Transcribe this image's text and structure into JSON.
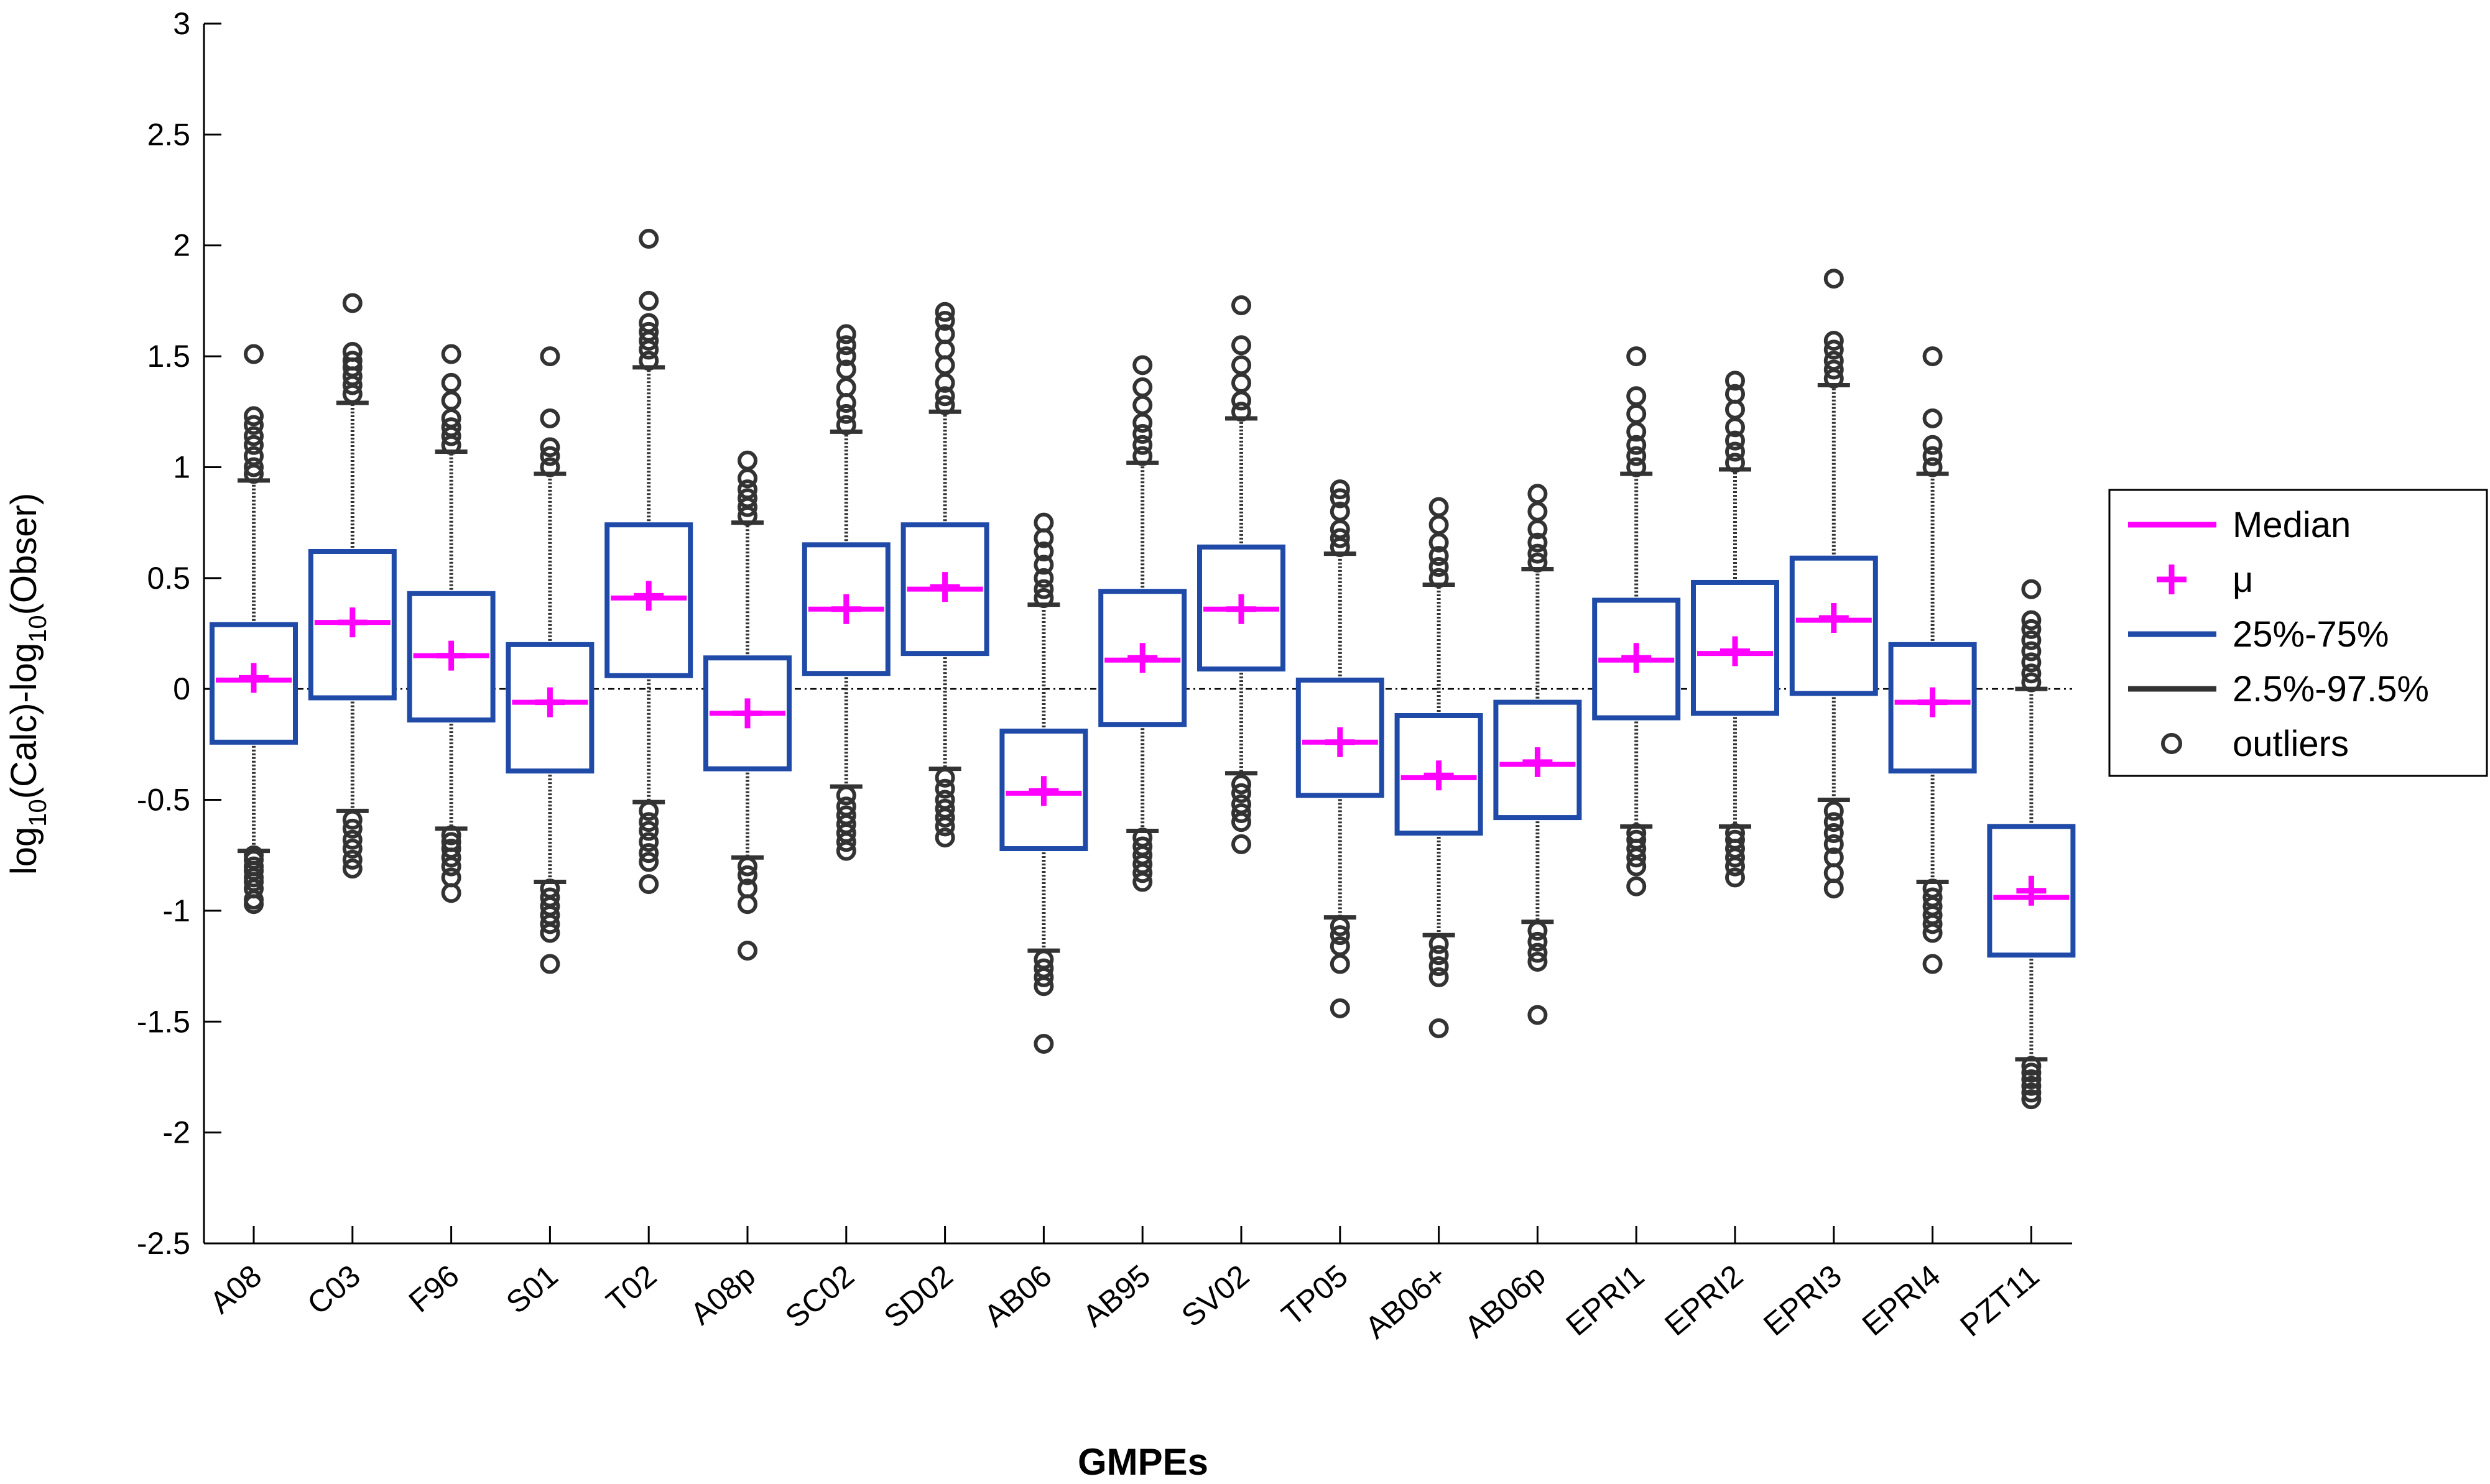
{
  "chart_data": {
    "type": "boxplot",
    "xlabel": "GMPEs",
    "ylabel_parts": [
      "log",
      "10",
      "(Calc)-log",
      "10",
      "(Obser)"
    ],
    "ylim": [
      -2.5,
      3
    ],
    "yticks": [
      -2.5,
      -2,
      -1.5,
      -1,
      -0.5,
      0,
      0.5,
      1,
      1.5,
      2,
      2.5,
      3
    ],
    "ytick_labels": [
      "-2.5",
      "-2",
      "-1.5",
      "-1",
      "-0.5",
      "0",
      "0.5",
      "1",
      "1.5",
      "2",
      "2.5",
      "3"
    ],
    "reference_line": 0,
    "categories": [
      "A08",
      "C03",
      "F96",
      "S01",
      "T02",
      "A08p",
      "SC02",
      "SD02",
      "AB06",
      "AB95",
      "SV02",
      "TP05",
      "AB06+",
      "AB06p",
      "EPRI1",
      "EPRI2",
      "EPRI3",
      "EPRI4",
      "PZT11"
    ],
    "boxes": [
      {
        "q1": -0.24,
        "q3": 0.29,
        "median": 0.04,
        "mean": 0.05,
        "lo": -0.73,
        "hi": 0.94,
        "outliers": [
          -0.97,
          -0.95,
          -0.9,
          -0.87,
          -0.85,
          -0.82,
          -0.8,
          -0.77,
          -0.75,
          0.97,
          1.0,
          1.05,
          1.1,
          1.14,
          1.19,
          1.23,
          1.51
        ]
      },
      {
        "q1": -0.04,
        "q3": 0.62,
        "median": 0.3,
        "mean": 0.3,
        "lo": -0.55,
        "hi": 1.29,
        "outliers": [
          -0.81,
          -0.77,
          -0.72,
          -0.68,
          -0.63,
          -0.59,
          1.33,
          1.37,
          1.41,
          1.45,
          1.48,
          1.52,
          1.74
        ]
      },
      {
        "q1": -0.14,
        "q3": 0.43,
        "median": 0.15,
        "mean": 0.15,
        "lo": -0.63,
        "hi": 1.07,
        "outliers": [
          -0.92,
          -0.85,
          -0.8,
          -0.76,
          -0.72,
          -0.69,
          -0.66,
          1.1,
          1.14,
          1.18,
          1.22,
          1.3,
          1.38,
          1.51
        ]
      },
      {
        "q1": -0.37,
        "q3": 0.2,
        "median": -0.06,
        "mean": -0.06,
        "lo": -0.87,
        "hi": 0.97,
        "outliers": [
          -1.24,
          -1.1,
          -1.06,
          -1.02,
          -0.98,
          -0.94,
          -0.9,
          1.0,
          1.05,
          1.09,
          1.22,
          1.5
        ]
      },
      {
        "q1": 0.06,
        "q3": 0.74,
        "median": 0.41,
        "mean": 0.42,
        "lo": -0.51,
        "hi": 1.45,
        "outliers": [
          -0.88,
          -0.78,
          -0.74,
          -0.69,
          -0.64,
          -0.6,
          -0.55,
          1.48,
          1.53,
          1.57,
          1.61,
          1.65,
          1.75,
          2.03
        ]
      },
      {
        "q1": -0.36,
        "q3": 0.14,
        "median": -0.11,
        "mean": -0.11,
        "lo": -0.76,
        "hi": 0.75,
        "outliers": [
          -1.18,
          -0.97,
          -0.9,
          -0.84,
          -0.8,
          0.78,
          0.82,
          0.86,
          0.9,
          0.95,
          1.03
        ]
      },
      {
        "q1": 0.07,
        "q3": 0.65,
        "median": 0.36,
        "mean": 0.36,
        "lo": -0.44,
        "hi": 1.16,
        "outliers": [
          -0.73,
          -0.69,
          -0.65,
          -0.61,
          -0.57,
          -0.53,
          -0.48,
          1.19,
          1.24,
          1.29,
          1.36,
          1.44,
          1.5,
          1.55,
          1.6
        ]
      },
      {
        "q1": 0.16,
        "q3": 0.74,
        "median": 0.45,
        "mean": 0.46,
        "lo": -0.36,
        "hi": 1.25,
        "outliers": [
          -0.67,
          -0.62,
          -0.58,
          -0.54,
          -0.5,
          -0.45,
          -0.4,
          1.28,
          1.32,
          1.38,
          1.46,
          1.53,
          1.6,
          1.66,
          1.7
        ]
      },
      {
        "q1": -0.72,
        "q3": -0.19,
        "median": -0.47,
        "mean": -0.46,
        "lo": -1.18,
        "hi": 0.38,
        "outliers": [
          -1.6,
          -1.34,
          -1.3,
          -1.26,
          -1.22,
          0.41,
          0.45,
          0.5,
          0.56,
          0.62,
          0.68,
          0.75
        ]
      },
      {
        "q1": -0.16,
        "q3": 0.44,
        "median": 0.13,
        "mean": 0.14,
        "lo": -0.64,
        "hi": 1.02,
        "outliers": [
          -0.87,
          -0.83,
          -0.79,
          -0.75,
          -0.71,
          -0.67,
          1.05,
          1.1,
          1.15,
          1.2,
          1.28,
          1.36,
          1.46
        ]
      },
      {
        "q1": 0.09,
        "q3": 0.64,
        "median": 0.36,
        "mean": 0.36,
        "lo": -0.38,
        "hi": 1.22,
        "outliers": [
          -0.7,
          -0.6,
          -0.56,
          -0.52,
          -0.47,
          -0.43,
          1.25,
          1.3,
          1.38,
          1.46,
          1.55,
          1.73
        ]
      },
      {
        "q1": -0.48,
        "q3": 0.04,
        "median": -0.24,
        "mean": -0.24,
        "lo": -1.03,
        "hi": 0.61,
        "outliers": [
          -1.44,
          -1.24,
          -1.16,
          -1.11,
          -1.07,
          0.64,
          0.68,
          0.72,
          0.8,
          0.86,
          0.9
        ]
      },
      {
        "q1": -0.65,
        "q3": -0.12,
        "median": -0.4,
        "mean": -0.39,
        "lo": -1.11,
        "hi": 0.47,
        "outliers": [
          -1.53,
          -1.3,
          -1.25,
          -1.2,
          -1.15,
          0.5,
          0.55,
          0.6,
          0.66,
          0.74,
          0.82
        ]
      },
      {
        "q1": -0.58,
        "q3": -0.06,
        "median": -0.34,
        "mean": -0.33,
        "lo": -1.05,
        "hi": 0.54,
        "outliers": [
          -1.47,
          -1.23,
          -1.19,
          -1.14,
          -1.09,
          0.57,
          0.61,
          0.66,
          0.72,
          0.8,
          0.88
        ]
      },
      {
        "q1": -0.13,
        "q3": 0.4,
        "median": 0.13,
        "mean": 0.14,
        "lo": -0.62,
        "hi": 0.97,
        "outliers": [
          -0.89,
          -0.8,
          -0.76,
          -0.72,
          -0.68,
          -0.65,
          1.0,
          1.05,
          1.1,
          1.16,
          1.24,
          1.32,
          1.5
        ]
      },
      {
        "q1": -0.11,
        "q3": 0.48,
        "median": 0.16,
        "mean": 0.17,
        "lo": -0.62,
        "hi": 0.99,
        "outliers": [
          -0.85,
          -0.8,
          -0.76,
          -0.72,
          -0.68,
          -0.65,
          1.02,
          1.07,
          1.12,
          1.18,
          1.26,
          1.33,
          1.39
        ]
      },
      {
        "q1": -0.02,
        "q3": 0.59,
        "median": 0.31,
        "mean": 0.32,
        "lo": -0.5,
        "hi": 1.37,
        "outliers": [
          -0.9,
          -0.83,
          -0.76,
          -0.7,
          -0.65,
          -0.6,
          -0.55,
          1.4,
          1.44,
          1.48,
          1.53,
          1.57,
          1.85
        ]
      },
      {
        "q1": -0.37,
        "q3": 0.2,
        "median": -0.06,
        "mean": -0.06,
        "lo": -0.87,
        "hi": 0.97,
        "outliers": [
          -1.24,
          -1.1,
          -1.06,
          -1.02,
          -0.98,
          -0.94,
          -0.9,
          1.0,
          1.05,
          1.1,
          1.22,
          1.5
        ]
      },
      {
        "q1": -1.2,
        "q3": -0.62,
        "median": -0.94,
        "mean": -0.91,
        "lo": -1.67,
        "hi": 0.0,
        "outliers": [
          -1.85,
          -1.82,
          -1.79,
          -1.76,
          -1.73,
          -1.7,
          0.03,
          0.07,
          0.12,
          0.17,
          0.22,
          0.27,
          0.31,
          0.45
        ]
      }
    ],
    "legend": {
      "position": "right",
      "entries": [
        {
          "label": "Median",
          "marker": "line",
          "color": "#ff00ff"
        },
        {
          "label": "μ",
          "marker": "plus",
          "color": "#ff00ff"
        },
        {
          "label": "25%-75%",
          "marker": "line",
          "color": "#1f4aa8"
        },
        {
          "label": "2.5%-97.5%",
          "marker": "line",
          "color": "#333333"
        },
        {
          "label": "outliers",
          "marker": "circle",
          "color": "#333333"
        }
      ]
    },
    "colors": {
      "box": "#1f4aa8",
      "median": "#ff00ff",
      "mean": "#ff00ff",
      "whisker": "#333333",
      "outlier": "#333333"
    }
  }
}
